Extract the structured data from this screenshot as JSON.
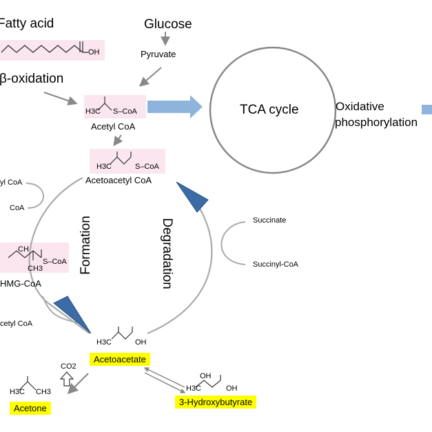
{
  "inputs": {
    "fatty_acid": "Fatty acid",
    "fatty_acid_oh": "OH",
    "glucose": "Glucose",
    "pyruvate": "Pyruvate",
    "beta_oxidation": "β-oxidation"
  },
  "metabolites": {
    "acetyl_coa": "Acetyl CoA",
    "acetyl_coa_struct_left": "H3C",
    "acetyl_coa_struct_right": "S–CoA",
    "acetoacetyl_coa": "Acetoacetyl CoA",
    "acetoacetyl_struct_left": "H3C",
    "acetoacetyl_struct_right": "S–CoA",
    "hmg_coa": "HMG-CoA",
    "hmg_struct_ch": "CH",
    "hmg_struct_ch3": "CH3",
    "hmg_struct_scoa": "S–CoA",
    "acetoacetate": "Acetoacetate",
    "acetoacetate_struct_left": "H3C",
    "acetoacetate_struct_right": "OH",
    "acetone": "Acetone",
    "acetone_struct_left": "H3C",
    "acetone_struct_right": "CH3",
    "co2": "CO2",
    "hydroxybutyrate": "3-Hydroxybutyrate",
    "hydroxy_struct_oh1": "OH",
    "hydroxy_struct_oh2": "OH",
    "hydroxy_struct_left": "H3C"
  },
  "side_reactions": {
    "left_top_in": "yl CoA",
    "left_top_out": "CoA",
    "left_bottom_in": "cetyl CoA",
    "right_in": "Succinate",
    "right_out": "Succinyl-CoA"
  },
  "processes": {
    "formation": "Formation",
    "degradation": "Degradation",
    "tca_cycle": "TCA cycle",
    "oxidative_line1": "Oxidative",
    "oxidative_line2": "phosphorylation"
  },
  "colors": {
    "highlight": "#ffff00",
    "pink": "#fbe6ef",
    "blue_arrow": "#8fb4dc",
    "blue_triangle": "#3c6ba5",
    "gray": "#888888"
  }
}
